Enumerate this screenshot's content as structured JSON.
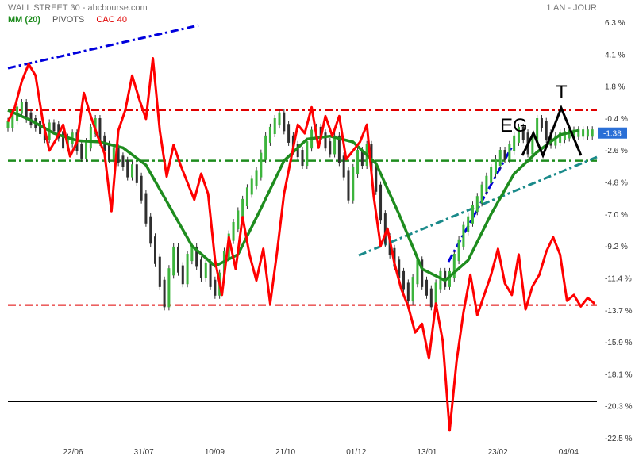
{
  "header": {
    "title": "WALL STREET 30 - abcbourse.com",
    "period": "1 AN - JOUR"
  },
  "legend": {
    "mm": "MM (20)",
    "pivots": "PIVOTS",
    "cac": "CAC 40"
  },
  "colors": {
    "candle_up": "#3cb43c",
    "candle_down": "#2f2f2f",
    "mm": "#1e8c1e",
    "cac": "#ff0000",
    "pivot_red": "#e00000",
    "pivot_green": "#1e8c1e",
    "trend_blue": "#0000dd",
    "trend_teal": "#1a8a8a",
    "annot": "#000000",
    "current_tag": "#2a6fd6"
  },
  "chart_data": {
    "type": "line",
    "title": "WALL STREET 30 - abcbourse.com",
    "period": "1 AN - JOUR",
    "y_ticks": [
      "6.3 %",
      "4.1 %",
      "1.8 %",
      "-0.4 %",
      "-2.6 %",
      "-4.8 %",
      "-7.0 %",
      "-9.2 %",
      "-11.4 %",
      "-13.7 %",
      "-15.9 %",
      "-18.1 %",
      "-20.3 %",
      "-22.5 %"
    ],
    "ylim": [
      -22.5,
      6.3
    ],
    "x_ticks": [
      "22/06",
      "31/07",
      "10/09",
      "21/10",
      "01/12",
      "13/01",
      "23/02",
      "04/04"
    ],
    "current_value_label": "-1.38",
    "series": [
      {
        "name": "WALL STREET 30",
        "style": "candles",
        "x": [
          0,
          2,
          4,
          6,
          8,
          10,
          12,
          14,
          16,
          18,
          20,
          22,
          24,
          26,
          28,
          30,
          32,
          34,
          36,
          38,
          40,
          42,
          44,
          46,
          48,
          50,
          52,
          54,
          56,
          58,
          60,
          62,
          64,
          66,
          68,
          70,
          72,
          74,
          76,
          78,
          80,
          82,
          84,
          86,
          88,
          90,
          92,
          94,
          96,
          98,
          100,
          102,
          104,
          106,
          108,
          110,
          112,
          114,
          116,
          118,
          120,
          122,
          124,
          126,
          128,
          130,
          132,
          134,
          136,
          138,
          140,
          142,
          144,
          146,
          148,
          150,
          152,
          154,
          156,
          158,
          160,
          162,
          164,
          166,
          168,
          170,
          172,
          174,
          176,
          178,
          180,
          182,
          184,
          186,
          188,
          190,
          192,
          194,
          196,
          198,
          200,
          202,
          204,
          206,
          208,
          210,
          212,
          214,
          216,
          218,
          220,
          222,
          224,
          226,
          228,
          230,
          232,
          234,
          236,
          238,
          240,
          242,
          244,
          246,
          248,
          250,
          252,
          254
        ],
        "values": [
          -0.8,
          -0.3,
          0.2,
          0.5,
          -0.2,
          -0.6,
          -0.8,
          -1.2,
          -1.6,
          -0.9,
          -1.0,
          -1.5,
          -2.2,
          -1.9,
          -1.6,
          -2.4,
          -2.9,
          -2.2,
          -1.2,
          -0.6,
          -1.8,
          -2.4,
          -3.0,
          -2.6,
          -3.2,
          -3.5,
          -4.2,
          -3.8,
          -4.6,
          -5.8,
          -7.4,
          -8.8,
          -10.2,
          -11.8,
          -13.2,
          -11.0,
          -9.5,
          -10.8,
          -11.6,
          -10.0,
          -9.5,
          -10.4,
          -11.2,
          -10.6,
          -11.8,
          -12.4,
          -11.3,
          -9.8,
          -8.6,
          -7.8,
          -7.0,
          -6.2,
          -5.4,
          -4.8,
          -4.2,
          -3.0,
          -1.8,
          -1.2,
          -0.6,
          -0.2,
          -1.0,
          -1.8,
          -2.4,
          -2.8,
          -3.4,
          -2.2,
          -1.4,
          -1.2,
          -1.6,
          -2.2,
          -2.6,
          -1.8,
          -3.2,
          -4.2,
          -5.8,
          -4.0,
          -2.8,
          -3.4,
          -2.4,
          -3.8,
          -5.2,
          -7.2,
          -8.8,
          -9.6,
          -10.4,
          -11.2,
          -12.0,
          -12.8,
          -11.6,
          -10.4,
          -11.8,
          -12.4,
          -13.2,
          -12.0,
          -11.2,
          -11.8,
          -11.2,
          -10.0,
          -9.0,
          -8.0,
          -7.4,
          -6.6,
          -6.0,
          -5.2,
          -4.6,
          -4.0,
          -3.4,
          -2.8,
          -3.0,
          -2.4,
          -1.8,
          -1.2,
          -1.6,
          -2.6,
          -1.8,
          -0.6,
          -0.8,
          -1.6,
          -2.0,
          -1.8,
          -1.6,
          -1.5,
          -1.4,
          -1.4,
          -1.38,
          -1.38,
          -1.38,
          -1.38
        ]
      },
      {
        "name": "MM (20)",
        "style": "line",
        "x": [
          0,
          10,
          20,
          30,
          40,
          50,
          60,
          70,
          80,
          90,
          100,
          110,
          120,
          130,
          140,
          150,
          160,
          170,
          180,
          190,
          200,
          210,
          220,
          230,
          240,
          248
        ],
        "values": [
          0.2,
          -0.5,
          -1.4,
          -1.9,
          -2.0,
          -2.4,
          -3.6,
          -6.4,
          -9.2,
          -10.6,
          -9.8,
          -6.6,
          -3.3,
          -1.8,
          -1.6,
          -2.0,
          -3.5,
          -7.0,
          -10.8,
          -11.6,
          -10.2,
          -7.0,
          -4.2,
          -2.7,
          -1.5,
          -1.2
        ]
      },
      {
        "name": "CAC 40",
        "style": "line",
        "x": [
          0,
          3,
          6,
          9,
          12,
          15,
          18,
          21,
          24,
          27,
          30,
          33,
          36,
          39,
          42,
          45,
          48,
          51,
          54,
          57,
          60,
          63,
          66,
          69,
          72,
          75,
          78,
          81,
          84,
          87,
          90,
          93,
          96,
          99,
          102,
          105,
          108,
          111,
          114,
          117,
          120,
          123,
          126,
          129,
          132,
          135,
          138,
          141,
          144,
          147,
          150,
          153,
          156,
          159,
          162,
          165,
          168,
          171,
          174,
          177,
          180,
          183,
          186,
          189,
          192,
          195,
          198,
          201,
          204,
          207,
          210,
          213,
          216,
          219,
          222,
          225,
          228,
          231,
          234,
          237,
          240,
          243,
          246,
          249,
          252,
          255
        ],
        "values": [
          -0.6,
          0.4,
          2.2,
          3.4,
          2.6,
          -0.4,
          -2.6,
          -1.8,
          -0.8,
          -3.0,
          -2.0,
          1.4,
          -0.2,
          -1.6,
          -2.8,
          -6.8,
          -1.2,
          0.2,
          2.6,
          1.0,
          -0.4,
          3.8,
          -1.2,
          -4.4,
          -2.2,
          -3.6,
          -4.8,
          -6.0,
          -4.2,
          -5.6,
          -10.2,
          -12.6,
          -8.6,
          -10.8,
          -7.2,
          -9.8,
          -11.6,
          -9.4,
          -13.2,
          -9.6,
          -5.6,
          -3.2,
          -0.8,
          -1.4,
          0.4,
          -2.4,
          -0.2,
          -1.6,
          -0.2,
          -3.2,
          -2.6,
          -2.0,
          -0.8,
          -5.8,
          -9.2,
          -8.0,
          -10.4,
          -12.2,
          -13.4,
          -15.2,
          -14.6,
          -17.0,
          -13.2,
          -15.8,
          -22.0,
          -17.2,
          -13.8,
          -11.2,
          -14.0,
          -12.6,
          -11.2,
          -9.4,
          -11.8,
          -12.6,
          -9.8,
          -13.6,
          -12.0,
          -11.2,
          -9.6,
          -8.6,
          -9.8,
          -13.0,
          -12.6,
          -13.4,
          -12.8,
          -13.2
        ]
      }
    ],
    "reference_lines": [
      {
        "kind": "pivot",
        "color": "red",
        "value": 0.2
      },
      {
        "kind": "pivot",
        "color": "green",
        "value": -3.3
      },
      {
        "kind": "pivot",
        "color": "red",
        "value": -13.3
      },
      {
        "kind": "baseline",
        "color": "black",
        "value": -20.0
      }
    ],
    "annotations": [
      "EG",
      "T"
    ]
  }
}
